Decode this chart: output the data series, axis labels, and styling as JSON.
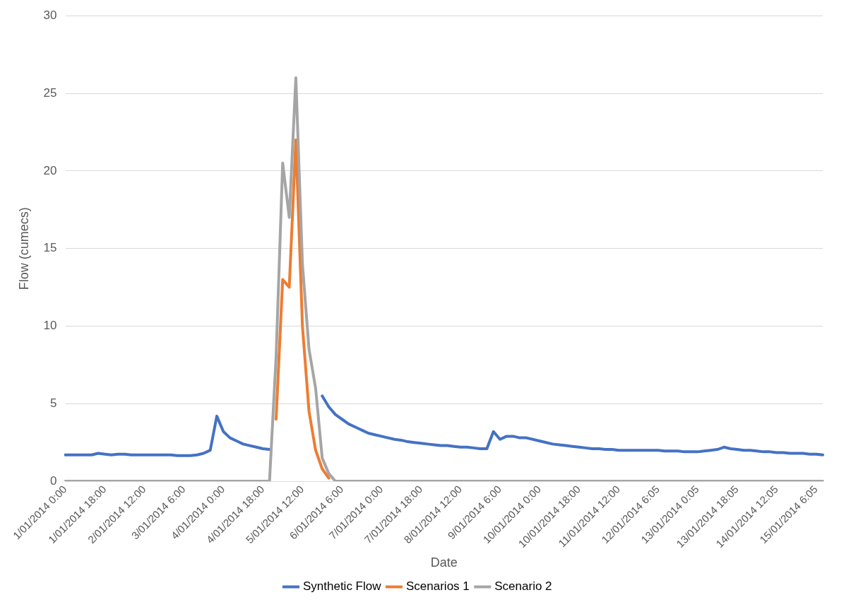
{
  "chart_data": {
    "type": "line",
    "xlabel": "Date",
    "ylabel": "Flow (cumecs)",
    "categories": [
      "1/01/2014 0:00",
      null,
      null,
      null,
      null,
      null,
      "1/01/2014 18:00",
      null,
      null,
      null,
      null,
      null,
      "2/01/2014 12:00",
      null,
      null,
      null,
      null,
      null,
      "3/01/2014 6:00",
      null,
      null,
      null,
      null,
      null,
      "4/01/2014 0:00",
      null,
      null,
      null,
      null,
      null,
      "4/01/2014 18:00",
      null,
      null,
      null,
      null,
      null,
      "5/01/2014 12:00",
      null,
      null,
      null,
      null,
      null,
      "6/01/2014 6:00",
      null,
      null,
      null,
      null,
      null,
      "7/01/2014 0:00",
      null,
      null,
      null,
      null,
      null,
      "7/01/2014 18:00",
      null,
      null,
      null,
      null,
      null,
      "8/01/2014 12:00",
      null,
      null,
      null,
      null,
      null,
      "9/01/2014 6:00",
      null,
      null,
      null,
      null,
      null,
      "10/01/2014 0:00",
      null,
      null,
      null,
      null,
      null,
      "10/01/2014 18:00",
      null,
      null,
      null,
      null,
      null,
      "11/01/2014 12:00",
      null,
      null,
      null,
      null,
      null,
      "12/01/2014 6:05",
      null,
      null,
      null,
      null,
      null,
      "13/01/2014 0:05",
      null,
      null,
      null,
      null,
      null,
      "13/01/2014 18:05",
      null,
      null,
      null,
      null,
      null,
      "14/01/2014 12:05",
      null,
      null,
      null,
      null,
      null,
      "15/01/2014 6:05",
      null
    ],
    "series": [
      {
        "name": "Synthetic Flow",
        "color": "#4472c4",
        "values": [
          1.7,
          1.7,
          1.7,
          1.7,
          1.7,
          1.8,
          1.75,
          1.7,
          1.75,
          1.75,
          1.7,
          1.7,
          1.7,
          1.7,
          1.7,
          1.7,
          1.7,
          1.65,
          1.65,
          1.65,
          1.7,
          1.8,
          2.0,
          4.2,
          3.2,
          2.8,
          2.6,
          2.4,
          2.3,
          2.2,
          2.1,
          2.05,
          null,
          null,
          null,
          null,
          null,
          null,
          null,
          5.5,
          4.8,
          4.3,
          4.0,
          3.7,
          3.5,
          3.3,
          3.1,
          3.0,
          2.9,
          2.8,
          2.7,
          2.65,
          2.55,
          2.5,
          2.45,
          2.4,
          2.35,
          2.3,
          2.3,
          2.25,
          2.2,
          2.2,
          2.15,
          2.1,
          2.1,
          3.2,
          2.7,
          2.9,
          2.9,
          2.8,
          2.8,
          2.7,
          2.6,
          2.5,
          2.4,
          2.35,
          2.3,
          2.25,
          2.2,
          2.15,
          2.1,
          2.1,
          2.05,
          2.05,
          2.0,
          2.0,
          2.0,
          2.0,
          2.0,
          2.0,
          2.0,
          1.95,
          1.95,
          1.95,
          1.9,
          1.9,
          1.9,
          1.95,
          2.0,
          2.05,
          2.2,
          2.1,
          2.05,
          2.0,
          2.0,
          1.95,
          1.9,
          1.9,
          1.85,
          1.85,
          1.8,
          1.8,
          1.8,
          1.75,
          1.75,
          1.7
        ]
      },
      {
        "name": "Scenarios 1",
        "color": "#ed7d31",
        "values": [
          null,
          null,
          null,
          null,
          null,
          null,
          null,
          null,
          null,
          null,
          null,
          null,
          null,
          null,
          null,
          null,
          null,
          null,
          null,
          null,
          null,
          null,
          null,
          null,
          null,
          null,
          null,
          null,
          null,
          null,
          null,
          null,
          4,
          13,
          12.5,
          22,
          10,
          4.5,
          2,
          0.8,
          0.2,
          null,
          null,
          null,
          null,
          null,
          null,
          null,
          null,
          null,
          null,
          null,
          null,
          null,
          null,
          null,
          null,
          null,
          null,
          null,
          null,
          null,
          null,
          null,
          null,
          null,
          null,
          null,
          null,
          null,
          null,
          null,
          null,
          null,
          null,
          null,
          null,
          null,
          null,
          null,
          null,
          null,
          null,
          null,
          null,
          null,
          null,
          null,
          null,
          null,
          null,
          null,
          null,
          null,
          null,
          null,
          null,
          null,
          null,
          null,
          null,
          null,
          null,
          null,
          null,
          null,
          null,
          null,
          null,
          null,
          null,
          null,
          null,
          null,
          null,
          null
        ]
      },
      {
        "name": "Scenario 2",
        "color": "#a5a5a5",
        "values": [
          0,
          0,
          0,
          0,
          0,
          0,
          0,
          0,
          0,
          0,
          0,
          0,
          0,
          0,
          0,
          0,
          0,
          0,
          0,
          0,
          0,
          0,
          0,
          0,
          0,
          0,
          0,
          0,
          0,
          0,
          0,
          0,
          8,
          20.5,
          17,
          26,
          14,
          8.5,
          6,
          1.5,
          0.5,
          0,
          0,
          0,
          0,
          0,
          0,
          0,
          0,
          0,
          0,
          0,
          0,
          0,
          0,
          0,
          0,
          0,
          0,
          0,
          0,
          0,
          0,
          0,
          0,
          0,
          0,
          0,
          0,
          0,
          0,
          0,
          0,
          0,
          0,
          0,
          0,
          0,
          0,
          0,
          0,
          0,
          0,
          0,
          0,
          0,
          0,
          0,
          0,
          0,
          0,
          0,
          0,
          0,
          0,
          0,
          0,
          0,
          0,
          0,
          0,
          0,
          0,
          0,
          0,
          0,
          0,
          0,
          0,
          0,
          0,
          0,
          0,
          0,
          0,
          0
        ]
      }
    ],
    "ylim": [
      0,
      30
    ],
    "yticks": [
      0,
      5,
      10,
      15,
      20,
      25,
      30
    ],
    "grid": "y",
    "legend": "bottom",
    "marker": "none",
    "line_style": "solid"
  }
}
